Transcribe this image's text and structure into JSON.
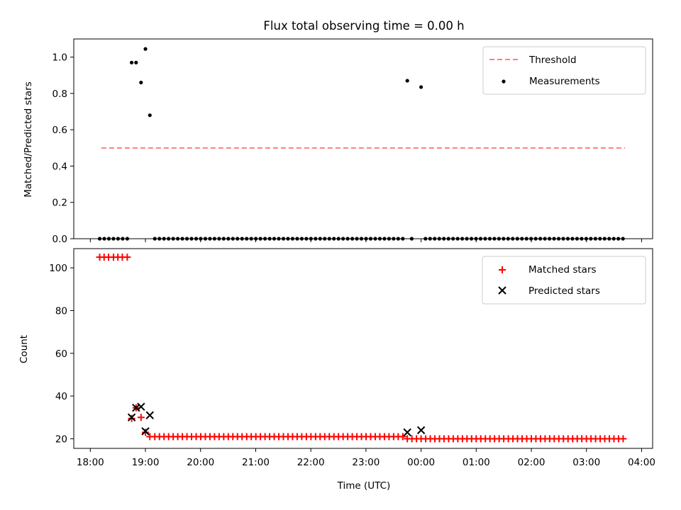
{
  "chart_data": [
    {
      "type": "scatter",
      "title": "Flux total observing time = 0.00 h",
      "xlabel": "",
      "ylabel": "Matched/Predicted stars",
      "xlim": [
        17.7,
        28.2
      ],
      "ylim": [
        0.0,
        1.1
      ],
      "yticks": [
        0.0,
        0.2,
        0.4,
        0.6,
        0.8,
        1.0
      ],
      "ytick_labels": [
        "0.0",
        "0.2",
        "0.4",
        "0.6",
        "0.8",
        "1.0"
      ],
      "threshold": {
        "value": 0.5,
        "x_range": [
          18.2,
          27.7
        ],
        "color": "#ff7f7f"
      },
      "legend": {
        "position": "top-right",
        "entries": [
          "Threshold",
          "Measurements"
        ]
      },
      "series": [
        {
          "name": "Measurements",
          "marker": "dot",
          "color": "#000000",
          "points": [
            [
              18.75,
              0.97
            ],
            [
              18.83,
              0.97
            ],
            [
              18.92,
              0.86
            ],
            [
              19.0,
              1.045
            ],
            [
              19.08,
              0.68
            ],
            [
              23.75,
              0.87
            ],
            [
              24.0,
              0.835
            ]
          ],
          "zeros": {
            "ranges": [
              [
                18.17,
                18.7,
                0.0833
              ],
              [
                19.17,
                23.7,
                0.0833
              ],
              [
                24.08,
                27.7,
                0.0833
              ]
            ],
            "extra": [
              23.83
            ]
          }
        }
      ]
    },
    {
      "type": "scatter",
      "xlabel": "Time (UTC)",
      "ylabel": "Count",
      "xlim": [
        17.7,
        28.2
      ],
      "ylim": [
        15.5,
        109
      ],
      "yticks": [
        20,
        40,
        60,
        80,
        100
      ],
      "ytick_labels": [
        "20",
        "40",
        "60",
        "80",
        "100"
      ],
      "xticks": [
        18,
        19,
        20,
        21,
        22,
        23,
        24,
        25,
        26,
        27,
        28
      ],
      "xtick_labels": [
        "18:00",
        "19:00",
        "20:00",
        "21:00",
        "22:00",
        "23:00",
        "00:00",
        "01:00",
        "02:00",
        "03:00",
        "04:00"
      ],
      "legend": {
        "position": "top-right",
        "entries": [
          "Matched stars",
          "Predicted stars"
        ]
      },
      "series": [
        {
          "name": "Matched stars",
          "marker": "plus",
          "color": "#ff0000",
          "points": [
            [
              18.17,
              105
            ],
            [
              18.25,
              105
            ],
            [
              18.33,
              105
            ],
            [
              18.42,
              105
            ],
            [
              18.5,
              105
            ],
            [
              18.58,
              105
            ],
            [
              18.67,
              105
            ],
            [
              18.75,
              29.5
            ],
            [
              18.83,
              34.5
            ],
            [
              18.92,
              30
            ],
            [
              19.0,
              23
            ],
            [
              19.08,
              21
            ]
          ],
          "fill_ranges": [
            [
              19.17,
              23.7,
              0.0833,
              21
            ],
            [
              23.75,
              27.7,
              0.0833,
              20
            ]
          ]
        },
        {
          "name": "Predicted stars",
          "marker": "x",
          "color": "#000000",
          "points": [
            [
              18.75,
              30
            ],
            [
              18.83,
              34.5
            ],
            [
              18.92,
              35
            ],
            [
              19.0,
              23.5
            ],
            [
              19.08,
              31
            ],
            [
              23.75,
              23
            ],
            [
              24.0,
              24
            ]
          ]
        }
      ]
    }
  ]
}
